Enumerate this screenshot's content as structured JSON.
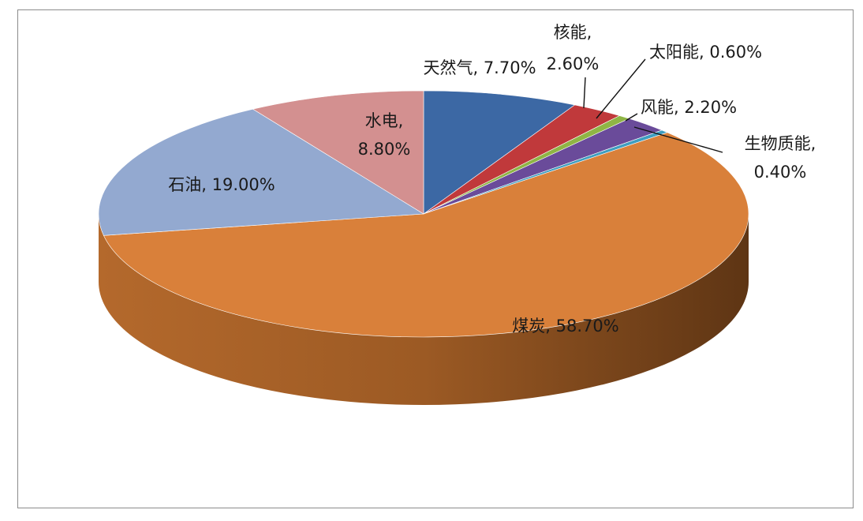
{
  "chart_data": {
    "type": "pie",
    "title": "",
    "slices": [
      {
        "label": "天然气",
        "value": 7.7,
        "display": "天然气, 7.70%",
        "color": "#3c68a4"
      },
      {
        "label": "核能",
        "value": 2.6,
        "display_lines": [
          "核能,",
          "2.60%"
        ],
        "color": "#c0393b"
      },
      {
        "label": "太阳能",
        "value": 0.6,
        "display": "太阳能, 0.60%",
        "color": "#8fb545"
      },
      {
        "label": "风能",
        "value": 2.2,
        "display": "风能, 2.20%",
        "color": "#6a4b9a"
      },
      {
        "label": "生物质能",
        "value": 0.4,
        "display_lines": [
          "生物质能,",
          "0.40%"
        ],
        "color": "#3f9ec0"
      },
      {
        "label": "煤炭",
        "value": 58.7,
        "display": "煤炭, 58.70%",
        "color": "#d9803a"
      },
      {
        "label": "石油",
        "value": 19.0,
        "display": "石油, 19.00%",
        "color": "#93a9d0"
      },
      {
        "label": "水电",
        "value": 8.8,
        "display_lines": [
          "水电,",
          "8.80%"
        ],
        "color": "#d39090"
      }
    ]
  }
}
